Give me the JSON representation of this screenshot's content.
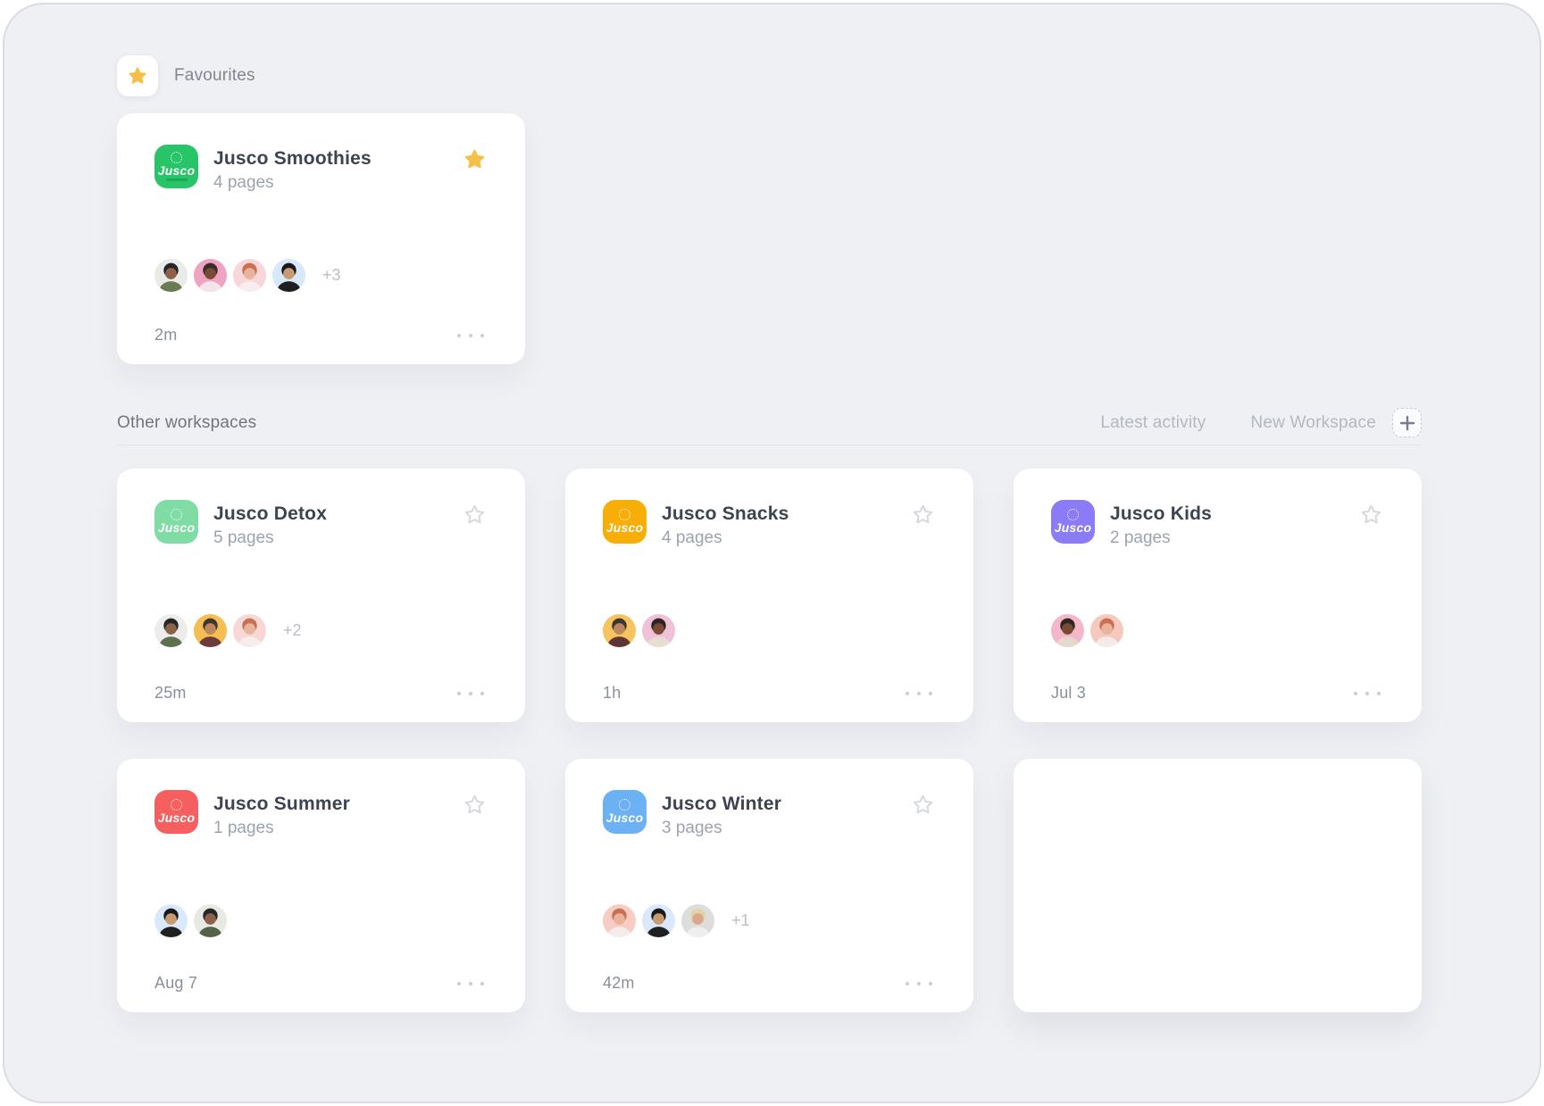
{
  "sections": {
    "favourites_label": "Favourites",
    "other_label": "Other workspaces",
    "latest_activity_label": "Latest activity",
    "new_workspace_label": "New Workspace"
  },
  "brand": {
    "logo_text": "Jusco"
  },
  "colors": {
    "page_bg": "#EEF0F4",
    "star_filled": "#F5C04A",
    "star_outline": "#D4D7DD"
  },
  "favourites": [
    {
      "title": "Jusco Smoothies",
      "pages": "4 pages",
      "time": "2m",
      "extra": "+3",
      "starred": true,
      "tagline": true,
      "logo_color": "#27C468",
      "avatars": [
        {
          "bg": "#E9EBE6",
          "skin": "#8C6248",
          "hair": "#23272B",
          "shirt": "#6A7B52"
        },
        {
          "bg": "#EFA3C2",
          "skin": "#7A4B33",
          "hair": "#3A2C2C",
          "shirt": "#F3E4EA"
        },
        {
          "bg": "#F8D6DA",
          "skin": "#E8B49B",
          "hair": "#C96F52",
          "shirt": "#F6EDEE"
        },
        {
          "bg": "#D6E8F9",
          "skin": "#C99A72",
          "hair": "#17191C",
          "shirt": "#1E2022"
        }
      ]
    }
  ],
  "workspaces": [
    {
      "title": "Jusco Detox",
      "pages": "5 pages",
      "time": "25m",
      "extra": "+2",
      "starred": false,
      "logo_color": "#7FDCA4",
      "avatars": [
        {
          "bg": "#ECEDEB",
          "skin": "#8C6248",
          "hair": "#23272B",
          "shirt": "#5F7050"
        },
        {
          "bg": "#F5BE52",
          "skin": "#BD8760",
          "hair": "#3E3430",
          "shirt": "#6E3B3B"
        },
        {
          "bg": "#F8D8D6",
          "skin": "#E8B49B",
          "hair": "#C96F52",
          "shirt": "#F6EDEE"
        }
      ]
    },
    {
      "title": "Jusco Snacks",
      "pages": "4 pages",
      "time": "1h",
      "extra": "",
      "starred": false,
      "logo_color": "#F7AE06",
      "avatars": [
        {
          "bg": "#F5C45E",
          "skin": "#BD8760",
          "hair": "#3E3430",
          "shirt": "#5E3434"
        },
        {
          "bg": "#EFC2D7",
          "skin": "#7A4B33",
          "hair": "#2E2424",
          "shirt": "#E8DDD3"
        }
      ]
    },
    {
      "title": "Jusco Kids",
      "pages": "2 pages",
      "time": "Jul 3",
      "extra": "",
      "starred": false,
      "logo_color": "#8C7BF6",
      "avatars": [
        {
          "bg": "#F2B7C9",
          "skin": "#7A4B33",
          "hair": "#2E2424",
          "shirt": "#E5D9CE"
        },
        {
          "bg": "#F6C9BE",
          "skin": "#E8B49B",
          "hair": "#C96F52",
          "shirt": "#F4EBEA"
        }
      ]
    },
    {
      "title": "Jusco Summer",
      "pages": "1 pages",
      "time": "Aug 7",
      "extra": "",
      "starred": false,
      "logo_color": "#F65F5F",
      "avatars": [
        {
          "bg": "#D9E9FB",
          "skin": "#C99A72",
          "hair": "#17191C",
          "shirt": "#1E2022"
        },
        {
          "bg": "#E8E9E3",
          "skin": "#8C6248",
          "hair": "#23272B",
          "shirt": "#55624A"
        }
      ]
    },
    {
      "title": "Jusco Winter",
      "pages": "3 pages",
      "time": "42m",
      "extra": "+1",
      "starred": false,
      "logo_color": "#6BB1F3",
      "avatars": [
        {
          "bg": "#F6CCC3",
          "skin": "#E8B49B",
          "hair": "#C96F52",
          "shirt": "#F4ECEC"
        },
        {
          "bg": "#D9E9FB",
          "skin": "#C99A72",
          "hair": "#17191C",
          "shirt": "#1E2022"
        },
        {
          "bg": "#DDDDDB",
          "skin": "#D9A98C",
          "hair": "#E4D3A8",
          "shirt": "#EFEFEF"
        }
      ]
    },
    {
      "empty": true
    }
  ]
}
